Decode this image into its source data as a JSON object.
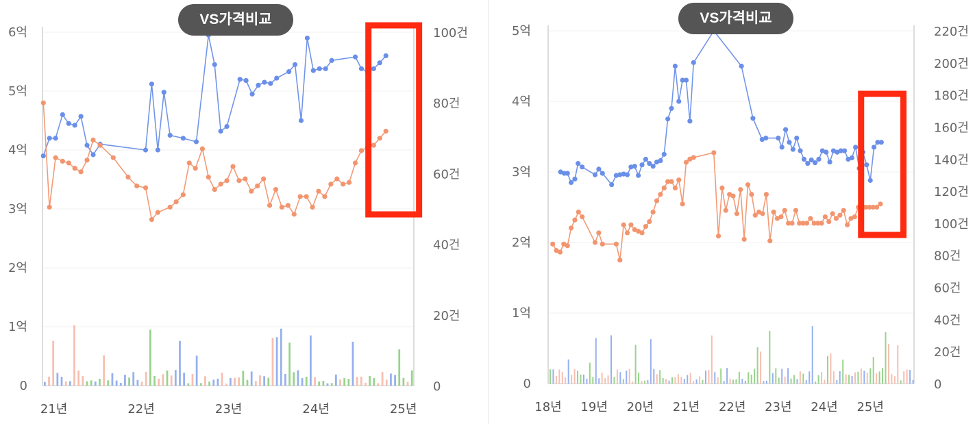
{
  "colors": {
    "blue": "#6a8fe8",
    "orange": "#f2956f",
    "green": "#6cc05a",
    "red_bar": "#f4a48e",
    "highlight": "#ff2a10",
    "pill": "#555555"
  },
  "chart_data": [
    {
      "type": "line",
      "badge": "VS가격비교",
      "x_ticks": [
        "21년",
        "22년",
        "23년",
        "24년",
        "25년"
      ],
      "x_tick_pos": [
        0,
        1,
        2,
        3,
        4
      ],
      "x_range": [
        -0.13,
        4.12
      ],
      "y_left": {
        "ticks": [
          "0",
          "1억",
          "2억",
          "3억",
          "4억",
          "5억",
          "6억"
        ],
        "range": [
          0,
          6
        ]
      },
      "y_right": {
        "ticks": [
          "0",
          "20건",
          "40건",
          "60건",
          "80건",
          "100건"
        ],
        "range": [
          0,
          100
        ]
      },
      "grid": true,
      "highlight_x": [
        3.6,
        4.18
      ],
      "series": [
        {
          "axis": "left",
          "color": "blue",
          "points": [
            [
              -0.12,
              3.9
            ],
            [
              -0.05,
              4.2
            ],
            [
              0.02,
              4.2
            ],
            [
              0.1,
              4.6
            ],
            [
              0.17,
              4.45
            ],
            [
              0.24,
              4.42
            ],
            [
              0.31,
              4.57
            ],
            [
              0.38,
              4.08
            ],
            [
              0.45,
              3.92
            ],
            [
              0.53,
              4.1
            ],
            [
              1.05,
              4.0
            ],
            [
              1.12,
              5.12
            ],
            [
              1.19,
              4.0
            ],
            [
              1.26,
              4.98
            ],
            [
              1.33,
              4.25
            ],
            [
              1.48,
              4.2
            ],
            [
              1.63,
              4.14
            ],
            [
              1.77,
              5.95
            ],
            [
              1.84,
              5.45
            ],
            [
              1.91,
              4.32
            ],
            [
              1.98,
              4.4
            ],
            [
              2.13,
              5.2
            ],
            [
              2.2,
              5.18
            ],
            [
              2.27,
              4.95
            ],
            [
              2.34,
              5.1
            ],
            [
              2.41,
              5.15
            ],
            [
              2.48,
              5.13
            ],
            [
              2.55,
              5.22
            ],
            [
              2.69,
              5.33
            ],
            [
              2.76,
              5.45
            ],
            [
              2.83,
              4.5
            ],
            [
              2.9,
              5.9
            ],
            [
              2.97,
              5.35
            ],
            [
              3.04,
              5.38
            ],
            [
              3.11,
              5.38
            ],
            [
              3.18,
              5.52
            ],
            [
              3.45,
              5.58
            ],
            [
              3.52,
              5.38
            ],
            [
              3.59,
              5.33
            ],
            [
              3.66,
              5.38
            ],
            [
              3.73,
              5.48
            ],
            [
              3.8,
              5.6
            ]
          ]
        },
        {
          "axis": "right",
          "color": "orange",
          "points": [
            [
              -0.12,
              80
            ],
            [
              -0.05,
              50.5
            ],
            [
              0.02,
              64.5
            ],
            [
              0.1,
              63.5
            ],
            [
              0.17,
              63
            ],
            [
              0.24,
              61.5
            ],
            [
              0.31,
              60.5
            ],
            [
              0.38,
              63.8
            ],
            [
              0.45,
              69.5
            ],
            [
              0.53,
              68
            ],
            [
              0.68,
              64.5
            ],
            [
              0.85,
              59
            ],
            [
              0.95,
              56.5
            ],
            [
              1.05,
              56
            ],
            [
              1.12,
              47
            ],
            [
              1.19,
              49
            ],
            [
              1.33,
              50.5
            ],
            [
              1.4,
              52
            ],
            [
              1.48,
              54
            ],
            [
              1.55,
              63
            ],
            [
              1.62,
              61.5
            ],
            [
              1.7,
              67
            ],
            [
              1.77,
              59
            ],
            [
              1.84,
              55.5
            ],
            [
              1.91,
              57
            ],
            [
              1.98,
              58
            ],
            [
              2.05,
              62
            ],
            [
              2.12,
              58
            ],
            [
              2.19,
              58.5
            ],
            [
              2.26,
              55
            ],
            [
              2.33,
              56.5
            ],
            [
              2.4,
              58.5
            ],
            [
              2.47,
              51
            ],
            [
              2.54,
              55.5
            ],
            [
              2.61,
              50.5
            ],
            [
              2.68,
              51
            ],
            [
              2.75,
              48.5
            ],
            [
              2.82,
              53.5
            ],
            [
              2.89,
              53.5
            ],
            [
              2.96,
              50.5
            ],
            [
              3.03,
              55
            ],
            [
              3.1,
              53.5
            ],
            [
              3.17,
              57
            ],
            [
              3.24,
              58.5
            ],
            [
              3.31,
              57
            ],
            [
              3.38,
              57.5
            ],
            [
              3.45,
              63
            ],
            [
              3.52,
              66.5
            ],
            [
              3.59,
              67.5
            ],
            [
              3.66,
              68
            ],
            [
              3.73,
              70
            ],
            [
              3.8,
              72
            ]
          ]
        }
      ]
    },
    {
      "type": "line",
      "badge": "VS가격비교",
      "x_ticks": [
        "18년",
        "19년",
        "20년",
        "21년",
        "22년",
        "23년",
        "24년",
        "25년"
      ],
      "x_tick_pos": [
        0,
        1,
        2,
        3,
        4,
        5,
        6,
        7
      ],
      "x_range": [
        0,
        7.95
      ],
      "y_left": {
        "ticks": [
          "0",
          "1억",
          "2억",
          "3억",
          "4억",
          "5억"
        ],
        "range": [
          0,
          5
        ]
      },
      "y_right": {
        "ticks": [
          "0",
          "20건",
          "40건",
          "60건",
          "80건",
          "100건",
          "120건",
          "140건",
          "160건",
          "180건",
          "200건",
          "220건"
        ],
        "range": [
          0,
          220
        ]
      },
      "grid": true,
      "highlight_x": [
        6.8,
        7.72
      ],
      "series": [
        {
          "axis": "left",
          "color": "blue",
          "points": [
            [
              0.27,
              3.0
            ],
            [
              0.35,
              2.98
            ],
            [
              0.42,
              2.98
            ],
            [
              0.5,
              2.85
            ],
            [
              0.58,
              2.9
            ],
            [
              0.65,
              3.12
            ],
            [
              0.74,
              3.07
            ],
            [
              1.02,
              2.96
            ],
            [
              1.1,
              3.04
            ],
            [
              1.18,
              2.98
            ],
            [
              1.38,
              2.82
            ],
            [
              1.48,
              2.95
            ],
            [
              1.56,
              2.96
            ],
            [
              1.64,
              2.97
            ],
            [
              1.72,
              2.96
            ],
            [
              1.8,
              3.07
            ],
            [
              1.88,
              3.08
            ],
            [
              1.96,
              2.95
            ],
            [
              2.04,
              3.1
            ],
            [
              2.12,
              3.18
            ],
            [
              2.2,
              3.12
            ],
            [
              2.28,
              3.08
            ],
            [
              2.36,
              3.14
            ],
            [
              2.44,
              3.16
            ],
            [
              2.52,
              3.25
            ],
            [
              2.6,
              3.75
            ],
            [
              2.68,
              3.9
            ],
            [
              2.76,
              4.5
            ],
            [
              2.84,
              4.0
            ],
            [
              2.92,
              4.3
            ],
            [
              3.0,
              4.3
            ],
            [
              3.08,
              3.72
            ],
            [
              3.16,
              4.55
            ],
            [
              3.6,
              5.0
            ],
            [
              4.2,
              4.5
            ],
            [
              4.45,
              3.76
            ],
            [
              4.65,
              3.46
            ],
            [
              4.73,
              3.48
            ],
            [
              5.0,
              3.48
            ],
            [
              5.08,
              3.35
            ],
            [
              5.16,
              3.6
            ],
            [
              5.24,
              3.42
            ],
            [
              5.32,
              3.32
            ],
            [
              5.4,
              3.48
            ],
            [
              5.48,
              3.3
            ],
            [
              5.56,
              3.18
            ],
            [
              5.64,
              3.12
            ],
            [
              5.72,
              3.17
            ],
            [
              5.8,
              3.13
            ],
            [
              5.88,
              3.18
            ],
            [
              5.96,
              3.3
            ],
            [
              6.04,
              3.28
            ],
            [
              6.12,
              3.14
            ],
            [
              6.2,
              3.3
            ],
            [
              6.28,
              3.28
            ],
            [
              6.36,
              3.3
            ],
            [
              6.44,
              3.3
            ],
            [
              6.52,
              3.18
            ],
            [
              6.6,
              3.2
            ],
            [
              6.68,
              3.35
            ],
            [
              6.76,
              3.05
            ],
            [
              6.84,
              3.28
            ],
            [
              6.92,
              3.1
            ],
            [
              7.0,
              2.88
            ],
            [
              7.08,
              3.35
            ],
            [
              7.16,
              3.42
            ],
            [
              7.24,
              3.42
            ]
          ]
        },
        {
          "axis": "right",
          "color": "orange",
          "points": [
            [
              0.1,
              87
            ],
            [
              0.18,
              83
            ],
            [
              0.26,
              82
            ],
            [
              0.34,
              87
            ],
            [
              0.42,
              86
            ],
            [
              0.5,
              97
            ],
            [
              0.58,
              102
            ],
            [
              0.66,
              107
            ],
            [
              0.74,
              104
            ],
            [
              1.02,
              88
            ],
            [
              1.1,
              94
            ],
            [
              1.18,
              87
            ],
            [
              1.48,
              87
            ],
            [
              1.56,
              77
            ],
            [
              1.64,
              99
            ],
            [
              1.72,
              94
            ],
            [
              1.8,
              99
            ],
            [
              1.88,
              96
            ],
            [
              1.96,
              95
            ],
            [
              2.04,
              94
            ],
            [
              2.12,
              98
            ],
            [
              2.2,
              101
            ],
            [
              2.28,
              107
            ],
            [
              2.36,
              114
            ],
            [
              2.44,
              118
            ],
            [
              2.52,
              122
            ],
            [
              2.6,
              126
            ],
            [
              2.68,
              126
            ],
            [
              2.76,
              122
            ],
            [
              2.84,
              127
            ],
            [
              2.92,
              112
            ],
            [
              3.0,
              138
            ],
            [
              3.08,
              140
            ],
            [
              3.16,
              141
            ],
            [
              3.6,
              144
            ],
            [
              3.7,
              92
            ],
            [
              3.78,
              122
            ],
            [
              3.86,
              108
            ],
            [
              3.94,
              118
            ],
            [
              4.02,
              117
            ],
            [
              4.1,
              106
            ],
            [
              4.18,
              121
            ],
            [
              4.26,
              90
            ],
            [
              4.34,
              124
            ],
            [
              4.42,
              118
            ],
            [
              4.5,
              105
            ],
            [
              4.58,
              107
            ],
            [
              4.66,
              106
            ],
            [
              4.74,
              118
            ],
            [
              4.82,
              89
            ],
            [
              4.9,
              107
            ],
            [
              4.98,
              103
            ],
            [
              5.06,
              104
            ],
            [
              5.14,
              108
            ],
            [
              5.22,
              100
            ],
            [
              5.3,
              100
            ],
            [
              5.38,
              108
            ],
            [
              5.46,
              100
            ],
            [
              5.54,
              100
            ],
            [
              5.62,
              100
            ],
            [
              5.7,
              103
            ],
            [
              5.78,
              100
            ],
            [
              5.86,
              100
            ],
            [
              5.94,
              100
            ],
            [
              6.02,
              104
            ],
            [
              6.1,
              101
            ],
            [
              6.18,
              106
            ],
            [
              6.26,
              103
            ],
            [
              6.34,
              105
            ],
            [
              6.42,
              108
            ],
            [
              6.5,
              99
            ],
            [
              6.58,
              103
            ],
            [
              6.66,
              104
            ],
            [
              6.74,
              110
            ],
            [
              6.82,
              109
            ],
            [
              6.9,
              110
            ],
            [
              6.98,
              110
            ],
            [
              7.06,
              110
            ],
            [
              7.14,
              110
            ],
            [
              7.22,
              112
            ]
          ]
        }
      ]
    }
  ]
}
